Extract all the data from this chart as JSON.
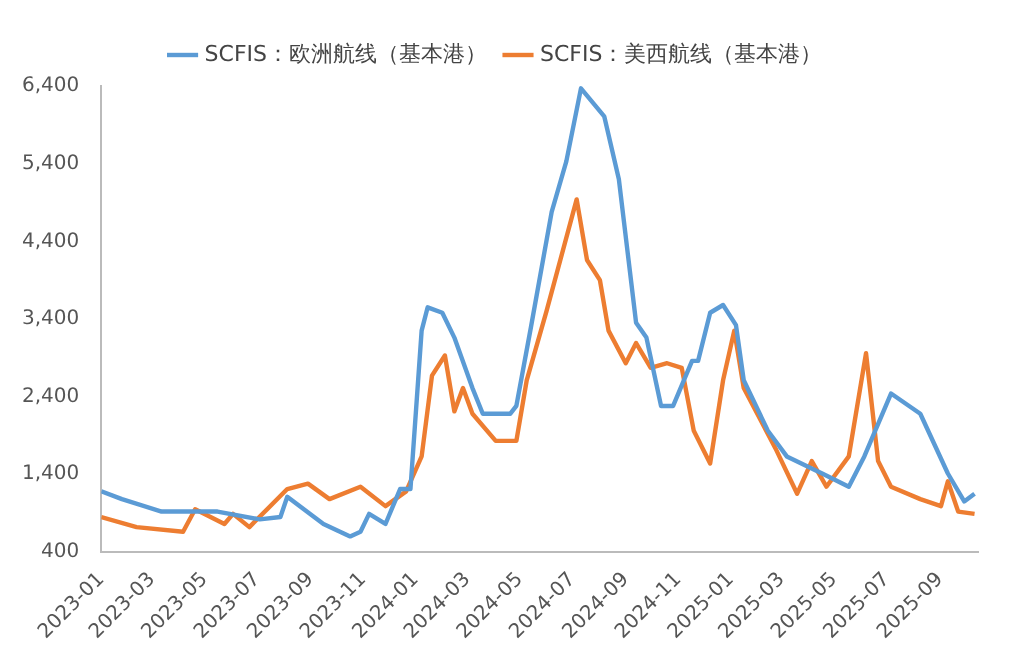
{
  "chart_data": {
    "type": "line",
    "xlim": [
      "2023-01-01",
      "2025-10-15"
    ],
    "xticks": [
      "2023-01",
      "2023-03",
      "2023-05",
      "2023-07",
      "2023-09",
      "2023-11",
      "2024-01",
      "2024-03",
      "2024-05",
      "2024-07",
      "2024-09",
      "2024-11",
      "2025-01",
      "2025-03",
      "2025-05",
      "2025-07",
      "2025-09"
    ],
    "ylim": [
      400,
      6400
    ],
    "yticks": [
      400,
      {
        "value": 1400,
        "label": "1,400"
      },
      {
        "value": 2400,
        "label": "2,400"
      },
      {
        "value": 3400,
        "label": "3,400"
      },
      {
        "value": 4400,
        "label": "4,400"
      },
      {
        "value": 5400,
        "label": "5,400"
      },
      {
        "value": 6400,
        "label": "6,400"
      }
    ],
    "grid": false,
    "legend": "top",
    "marker": "none",
    "line_style": "solid",
    "series": [
      {
        "name": "SCFIS：欧洲航线（基本港）",
        "color": "#5b9bd5",
        "x": [
          "2023-01-01",
          "2023-01-25",
          "2023-03-12",
          "2023-05-16",
          "2023-07-04",
          "2023-07-28",
          "2023-08-05",
          "2023-09-16",
          "2023-10-17",
          "2023-10-29",
          "2023-11-08",
          "2023-11-27",
          "2023-12-14",
          "2023-12-26",
          "2024-01-08",
          "2024-01-15",
          "2024-02-01",
          "2024-02-15",
          "2024-03-07",
          "2024-03-19",
          "2024-04-20",
          "2024-04-27",
          "2024-05-14",
          "2024-06-07",
          "2024-06-24",
          "2024-07-11",
          "2024-08-07",
          "2024-08-24",
          "2024-09-13",
          "2024-09-25",
          "2024-10-12",
          "2024-10-26",
          "2024-11-17",
          "2024-11-24",
          "2024-12-08",
          "2024-12-23",
          "2025-01-07",
          "2025-01-16",
          "2025-02-13",
          "2025-03-07",
          "2025-04-17",
          "2025-05-18",
          "2025-06-05",
          "2025-07-06",
          "2025-08-09",
          "2025-09-10",
          "2025-09-29",
          "2025-10-11"
        ],
        "values": [
          1180,
          1080,
          920,
          920,
          820,
          850,
          1110,
          760,
          600,
          660,
          890,
          760,
          1210,
          1210,
          3250,
          3550,
          3480,
          3160,
          2510,
          2180,
          2180,
          2280,
          3300,
          4780,
          5430,
          6370,
          6010,
          5200,
          3350,
          3160,
          2280,
          2280,
          2860,
          2860,
          3480,
          3580,
          3320,
          2610,
          1960,
          1630,
          1410,
          1240,
          1630,
          2440,
          2180,
          1410,
          1050,
          1150
        ]
      },
      {
        "name": "SCFIS：美西航线（基本港）",
        "color": "#ed7d31",
        "x": [
          "2023-01-01",
          "2023-02-11",
          "2023-04-06",
          "2023-04-20",
          "2023-05-24",
          "2023-06-03",
          "2023-06-22",
          "2023-08-05",
          "2023-08-29",
          "2023-09-23",
          "2023-10-29",
          "2023-11-27",
          "2023-12-21",
          "2024-01-08",
          "2024-01-20",
          "2024-02-04",
          "2024-02-15",
          "2024-02-25",
          "2024-03-07",
          "2024-04-03",
          "2024-04-27",
          "2024-05-09",
          "2024-06-01",
          "2024-07-06",
          "2024-07-18",
          "2024-08-02",
          "2024-08-12",
          "2024-09-01",
          "2024-09-13",
          "2024-09-30",
          "2024-10-19",
          "2024-11-05",
          "2024-11-19",
          "2024-12-08",
          "2024-12-23",
          "2025-01-05",
          "2025-01-16",
          "2025-02-22",
          "2025-03-19",
          "2025-04-05",
          "2025-04-22",
          "2025-05-18",
          "2025-06-07",
          "2025-06-21",
          "2025-07-06",
          "2025-08-09",
          "2025-09-02",
          "2025-09-10",
          "2025-09-22",
          "2025-10-11"
        ],
        "values": [
          850,
          720,
          660,
          950,
          760,
          890,
          720,
          1210,
          1280,
          1080,
          1240,
          990,
          1180,
          1630,
          2670,
          2930,
          2210,
          2510,
          2180,
          1830,
          1830,
          2610,
          3500,
          4940,
          4160,
          3900,
          3250,
          2830,
          3090,
          2770,
          2830,
          2770,
          1960,
          1540,
          2610,
          3250,
          2510,
          1730,
          1150,
          1570,
          1240,
          1630,
          2960,
          1570,
          1240,
          1080,
          990,
          1310,
          920,
          890
        ]
      }
    ]
  }
}
